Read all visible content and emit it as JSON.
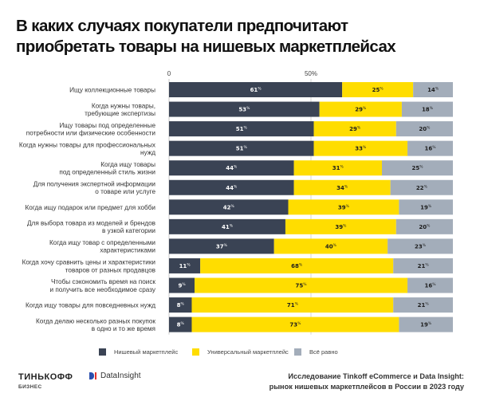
{
  "title": {
    "line1": "В каких случаях покупатели предпочитают",
    "line2": "приобретать товары на нишевых маркетплейсах"
  },
  "colors": {
    "niche": "#3a4354",
    "universal": "#ffdd00",
    "indifferent": "#a3adba",
    "niche_text": "#ffffff",
    "universal_text": "#1d1d1d",
    "indifferent_text": "#1d1d1d"
  },
  "chart_data": {
    "type": "bar",
    "orientation": "horizontal",
    "stacked": true,
    "title": "В каких случаях покупатели предпочитают приобретать товары на нишевых маркетплейсах",
    "xlabel": "",
    "ylabel": "",
    "xlim": [
      0,
      100
    ],
    "x_ticks": [
      {
        "value": 0,
        "label": "0"
      },
      {
        "value": 50,
        "label": "50%"
      }
    ],
    "grid": true,
    "legend_position": "bottom",
    "value_suffix": "%",
    "categories": [
      [
        "Ищу коллекционные товары"
      ],
      [
        "Когда нужны товары,",
        "требующие экспертизы"
      ],
      [
        "Ищу товары под  определенные",
        "потребности или физические особенности"
      ],
      [
        "Когда нужны товары для профессиональных",
        "нужд"
      ],
      [
        "Когда ищу товары",
        "под определенный стиль жизни"
      ],
      [
        "Для получения экспертной информации",
        "о товаре или услуге"
      ],
      [
        "Когда ищу  подарок или предмет для хобби"
      ],
      [
        "Для выбора товара из моделей и брендов",
        "в узкой категории"
      ],
      [
        "Когда ищу товар с определенными",
        "характеристиками"
      ],
      [
        "Когда хочу сравнить цены и характеристики",
        "товаров от разных продавцов"
      ],
      [
        "Чтобы сэкономить время на поиск",
        "и получить все необходимое сразу"
      ],
      [
        "Когда ищу товары для повседневных нужд"
      ],
      [
        "Когда делаю несколько разных покупок",
        "в одно и то же время"
      ]
    ],
    "series": [
      {
        "name": "Нишевый маркетплейс",
        "key": "niche",
        "values": [
          61,
          53,
          51,
          51,
          44,
          44,
          42,
          41,
          37,
          11,
          9,
          8,
          8
        ]
      },
      {
        "name": "Универсальный маркетплейс",
        "key": "universal",
        "values": [
          25,
          29,
          29,
          33,
          31,
          34,
          39,
          39,
          40,
          68,
          75,
          71,
          73
        ]
      },
      {
        "name": "Всё равно",
        "key": "indifferent",
        "values": [
          14,
          18,
          20,
          16,
          25,
          22,
          19,
          20,
          23,
          21,
          16,
          21,
          19
        ]
      }
    ]
  },
  "footer": {
    "brand_main": "ТИНЬКОФФ",
    "brand_sub": "БИЗНЕС",
    "partner": "DataInsight",
    "source_line1": "Исследование Tinkoff eCommerce и Data Insight:",
    "source_line2": "рынок нишевых маркетплейсов в России в 2023 году"
  }
}
